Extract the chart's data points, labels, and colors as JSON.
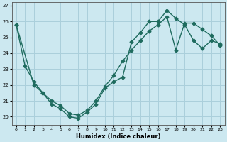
{
  "xlabel": "Humidex (Indice chaleur)",
  "background_color": "#cce8f0",
  "grid_color": "#aacfdb",
  "line_color": "#1e6b5e",
  "xlim": [
    -0.5,
    23.5
  ],
  "ylim": [
    19.5,
    27.2
  ],
  "yticks": [
    20,
    21,
    22,
    23,
    24,
    25,
    26,
    27
  ],
  "xticks": [
    0,
    1,
    2,
    3,
    4,
    5,
    6,
    7,
    8,
    9,
    10,
    11,
    12,
    13,
    14,
    15,
    16,
    17,
    18,
    19,
    20,
    21,
    22,
    23
  ],
  "line1_x": [
    0,
    1,
    2,
    3,
    4,
    5,
    6,
    7,
    8,
    9,
    10,
    11,
    12,
    13,
    14,
    15,
    16,
    17,
    18,
    19,
    20,
    21,
    22,
    23
  ],
  "line1_y": [
    25.8,
    23.2,
    22.2,
    21.5,
    20.8,
    20.5,
    20.0,
    19.9,
    20.3,
    20.8,
    21.8,
    22.2,
    22.5,
    24.7,
    25.3,
    26.0,
    26.0,
    26.7,
    26.2,
    25.8,
    24.8,
    24.3,
    24.8,
    24.6
  ],
  "line2_x": [
    0,
    2,
    3,
    4,
    5,
    6,
    7,
    8,
    9,
    10,
    11,
    12,
    13,
    14,
    15,
    16,
    17,
    18,
    19,
    20,
    21,
    22,
    23
  ],
  "line2_y": [
    25.8,
    22.0,
    21.5,
    21.0,
    20.7,
    20.2,
    20.1,
    20.4,
    21.0,
    21.9,
    22.6,
    23.5,
    24.2,
    24.8,
    25.4,
    25.8,
    26.3,
    24.2,
    25.9,
    25.9,
    25.5,
    25.1,
    24.5
  ]
}
